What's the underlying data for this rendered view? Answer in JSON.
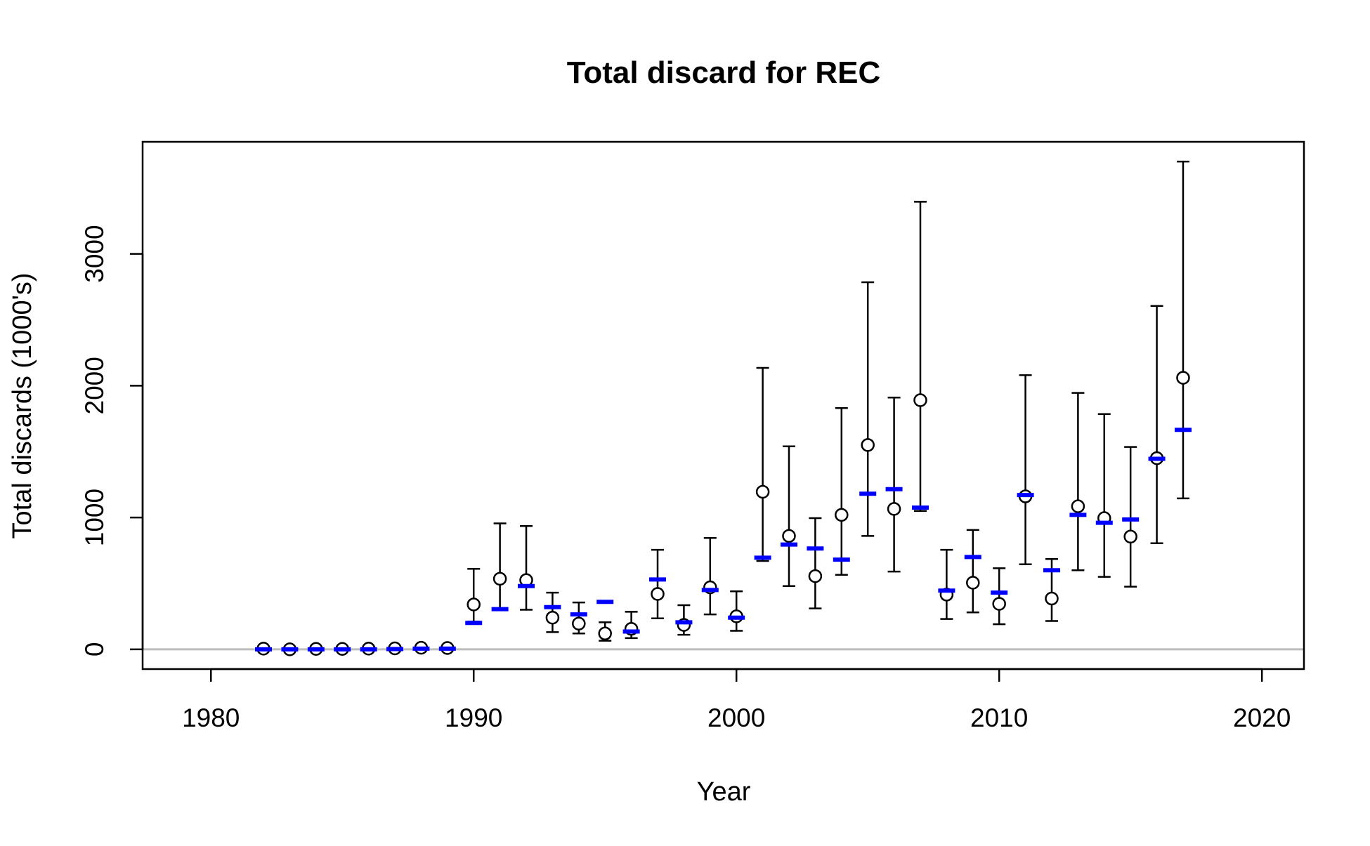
{
  "chart_data": {
    "type": "scatter",
    "title": "Total discard for REC",
    "xlabel": "Year",
    "ylabel": "Total discards (1000's)",
    "xlim": [
      1977.3,
      1981.6
    ],
    "ylim": [
      -150,
      3850
    ],
    "x_ticks": [
      1980,
      1990,
      2000,
      2010,
      2020
    ],
    "y_ticks": [
      0,
      1000,
      2000,
      3000
    ],
    "x_tick_labels": [
      "1980",
      "1990",
      "2000",
      "2010",
      "2020"
    ],
    "y_tick_labels": [
      "0",
      "1000",
      "2000",
      "3000"
    ],
    "grid": false,
    "legend": "none",
    "zero_line": 0,
    "colors": {
      "observed": "#000000",
      "expected": "#0000ff",
      "zero_line": "#bebebe",
      "frame": "#000000"
    },
    "series": [
      {
        "marker": "open-circle",
        "x": [
          1982,
          1983,
          1984,
          1985,
          1986,
          1987,
          1988,
          1989,
          1990,
          1991,
          1992,
          1993,
          1994,
          1995,
          1996,
          1997,
          1998,
          1999,
          2000,
          2001,
          2002,
          2003,
          2004,
          2005,
          2006,
          2007,
          2008,
          2009,
          2010,
          2011,
          2012,
          2013,
          2014,
          2015,
          2016,
          2017
        ],
        "y": [
          5,
          0,
          3,
          3,
          5,
          7,
          12,
          10,
          340,
          535,
          525,
          240,
          195,
          120,
          155,
          420,
          185,
          470,
          250,
          1195,
          860,
          555,
          1020,
          1550,
          1065,
          1890,
          415,
          505,
          345,
          1160,
          385,
          1085,
          995,
          855,
          1450,
          2060
        ],
        "lower": [
          5,
          0,
          3,
          3,
          5,
          7,
          12,
          10,
          210,
          310,
          300,
          130,
          120,
          65,
          85,
          235,
          110,
          265,
          140,
          670,
          480,
          310,
          565,
          860,
          590,
          1050,
          230,
          280,
          190,
          645,
          215,
          600,
          550,
          475,
          805,
          1145
        ],
        "upper": [
          5,
          0,
          3,
          3,
          5,
          7,
          12,
          10,
          610,
          955,
          935,
          430,
          355,
          205,
          285,
          755,
          335,
          845,
          440,
          2135,
          1540,
          995,
          1830,
          2785,
          1910,
          3395,
          755,
          905,
          615,
          2080,
          685,
          1945,
          1785,
          1535,
          2605,
          3700
        ]
      },
      {
        "marker": "dash",
        "x": [
          1982,
          1983,
          1984,
          1985,
          1986,
          1987,
          1988,
          1989,
          1990,
          1991,
          1992,
          1993,
          1994,
          1995,
          1996,
          1997,
          1998,
          1999,
          2000,
          2001,
          2002,
          2003,
          2004,
          2005,
          2006,
          2007,
          2008,
          2009,
          2010,
          2011,
          2012,
          2013,
          2014,
          2015,
          2016,
          2017
        ],
        "y": [
          0,
          0,
          0,
          0,
          0,
          2,
          5,
          5,
          200,
          305,
          480,
          320,
          265,
          360,
          135,
          530,
          205,
          450,
          240,
          695,
          795,
          765,
          680,
          1180,
          1215,
          1075,
          445,
          700,
          430,
          1170,
          600,
          1020,
          960,
          985,
          1445,
          1665
        ]
      }
    ]
  }
}
